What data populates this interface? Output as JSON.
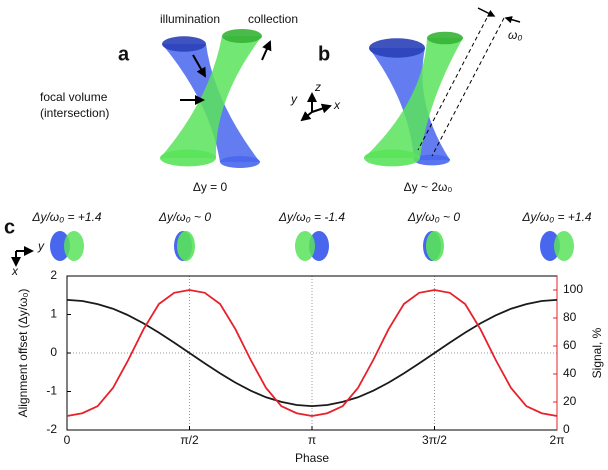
{
  "panels": {
    "a": {
      "label": "a",
      "illumination": "illumination",
      "collection": "collection",
      "focal_volume": "focal volume",
      "intersection": "(intersection)",
      "caption": "Δy = 0"
    },
    "b": {
      "label": "b",
      "axes": [
        "z",
        "y",
        "x"
      ],
      "waist": "ω₀",
      "caption": "Δy ~ 2ω₀"
    },
    "c": {
      "label": "c",
      "axes": [
        "y",
        "x"
      ],
      "offsets": [
        "Δy/ω₀ = +1.4",
        "Δy/ω₀ ~ 0",
        "Δy/ω₀ = -1.4",
        "Δy/ω₀ ~ 0",
        "Δy/ω₀ = +1.4"
      ]
    }
  },
  "chart_data": {
    "type": "line",
    "xlabel": "Phase",
    "ylabel": "Alignment offset (Δy/ω₀)",
    "y2label": "Signal, %",
    "x": [
      0,
      0.1963,
      0.3927,
      0.589,
      0.7854,
      0.9817,
      1.1781,
      1.3744,
      1.5708,
      1.7671,
      1.9635,
      2.1598,
      2.3562,
      2.5525,
      2.7489,
      2.9452,
      3.1416,
      3.3379,
      3.5343,
      3.7306,
      3.927,
      4.1233,
      4.3197,
      4.516,
      4.7124,
      4.9087,
      5.1051,
      5.3014,
      5.4978,
      5.6941,
      5.8905,
      6.0868,
      6.2832
    ],
    "series": [
      {
        "color": "#1a1a1a",
        "axis": "y",
        "values": [
          1.38,
          1.35,
          1.27,
          1.15,
          0.98,
          0.77,
          0.53,
          0.27,
          0,
          -0.27,
          -0.53,
          -0.77,
          -0.98,
          -1.15,
          -1.27,
          -1.35,
          -1.38,
          -1.35,
          -1.27,
          -1.15,
          -0.98,
          -0.77,
          -0.53,
          -0.27,
          0,
          0.27,
          0.53,
          0.77,
          0.98,
          1.15,
          1.27,
          1.35,
          1.38
        ]
      },
      {
        "color": "#e8202a",
        "axis": "y2",
        "values": [
          10,
          12,
          17,
          30,
          50,
          72,
          90,
          98,
          100,
          98,
          90,
          72,
          50,
          30,
          17,
          12,
          10,
          12,
          17,
          30,
          50,
          72,
          90,
          98,
          100,
          98,
          90,
          72,
          50,
          30,
          17,
          12,
          10
        ]
      }
    ],
    "xlim": [
      0,
      6.2832
    ],
    "xticks": [
      0,
      {
        "value": 1.5708,
        "label": "π/2"
      },
      {
        "value": 3.1416,
        "label": "π"
      },
      {
        "value": 4.7124,
        "label": "3π/2"
      },
      {
        "value": 6.2832,
        "label": "2π"
      }
    ],
    "ylim": [
      -2,
      2
    ],
    "yticks": [
      -2,
      -1,
      0,
      1,
      2
    ],
    "y2lim": [
      0,
      110
    ],
    "y2ticks": [
      0,
      20,
      40,
      60,
      80,
      100
    ],
    "xgrid": true,
    "zero_line": true
  }
}
